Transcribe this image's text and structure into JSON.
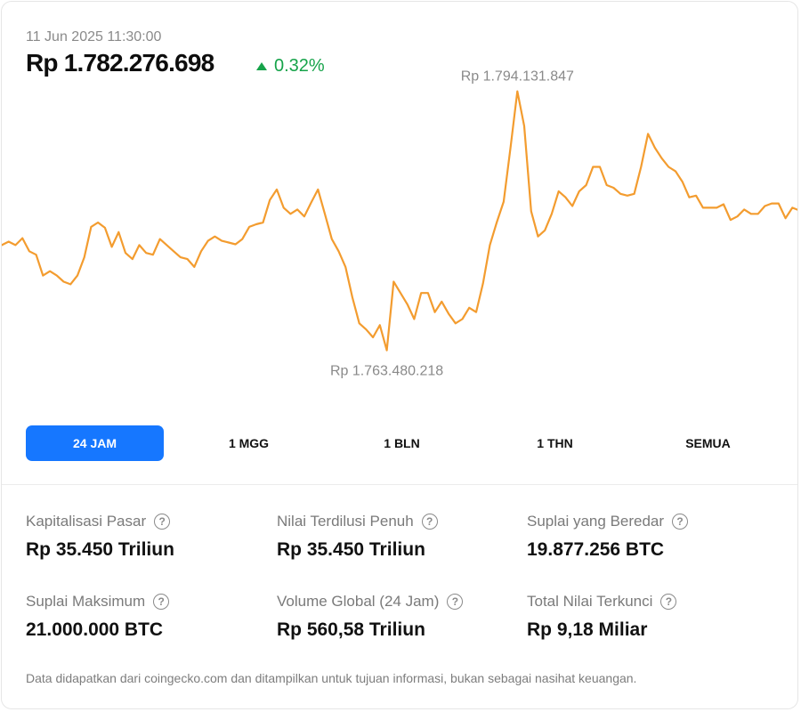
{
  "header": {
    "timestamp": "11 Jun 2025 11:30:00",
    "price": "Rp 1.782.276.698",
    "change": "0.32%",
    "change_color": "#16a34a"
  },
  "chart_data": {
    "type": "line",
    "color": "#f39c2f",
    "y_range": [
      1757000000,
      1800000000
    ],
    "high_label": "Rp 1.794.131.847",
    "low_label": "Rp 1.763.480.218",
    "high": 1794131847,
    "low": 1763480218,
    "values": [
      1776100000,
      1776500000,
      1776100000,
      1776900000,
      1775400000,
      1775000000,
      1772600000,
      1773100000,
      1772600000,
      1771900000,
      1771600000,
      1772600000,
      1774700000,
      1778200000,
      1778700000,
      1778100000,
      1775900000,
      1777600000,
      1775200000,
      1774500000,
      1776100000,
      1775200000,
      1775000000,
      1776800000,
      1776100000,
      1775400000,
      1774700000,
      1774500000,
      1773600000,
      1775400000,
      1776600000,
      1777100000,
      1776600000,
      1776400000,
      1776200000,
      1776800000,
      1778200000,
      1778500000,
      1778700000,
      1781300000,
      1782500000,
      1780400000,
      1779700000,
      1780200000,
      1779400000,
      1781000000,
      1782500000,
      1779700000,
      1776800000,
      1775400000,
      1773600000,
      1770100000,
      1767100000,
      1766400000,
      1765500000,
      1766900000,
      1764000000,
      1771900000,
      1770600000,
      1769300000,
      1767600000,
      1770600000,
      1770600000,
      1768400000,
      1769600000,
      1768200000,
      1767100000,
      1767600000,
      1768900000,
      1768400000,
      1771700000,
      1776100000,
      1778700000,
      1781100000,
      1787300000,
      1793800000,
      1789800000,
      1780000000,
      1777100000,
      1777800000,
      1779700000,
      1782300000,
      1781600000,
      1780600000,
      1782300000,
      1783000000,
      1785100000,
      1785100000,
      1783000000,
      1782700000,
      1782000000,
      1781800000,
      1782000000,
      1785100000,
      1788900000,
      1787300000,
      1786100000,
      1785100000,
      1784600000,
      1783400000,
      1781600000,
      1781800000,
      1780400000,
      1780400000,
      1780400000,
      1780800000,
      1779000000,
      1779400000,
      1780200000,
      1779700000,
      1779700000,
      1780600000,
      1780900000,
      1780900000,
      1779200000,
      1780400000,
      1780100000
    ]
  },
  "ranges": [
    {
      "label": "24 JAM",
      "active": true
    },
    {
      "label": "1 MGG",
      "active": false
    },
    {
      "label": "1 BLN",
      "active": false
    },
    {
      "label": "1 THN",
      "active": false
    },
    {
      "label": "SEMUA",
      "active": false
    }
  ],
  "stats": [
    {
      "label": "Kapitalisasi Pasar",
      "value": "Rp 35.450 Triliun"
    },
    {
      "label": "Nilai Terdilusi Penuh",
      "value": "Rp 35.450 Triliun"
    },
    {
      "label": "Suplai yang Beredar",
      "value": "19.877.256 BTC"
    },
    {
      "label": "Suplai Maksimum",
      "value": "21.000.000 BTC"
    },
    {
      "label": "Volume Global (24 Jam)",
      "value": "Rp 560,58 Triliun"
    },
    {
      "label": "Total Nilai Terkunci",
      "value": "Rp 9,18 Miliar"
    }
  ],
  "help_icon": "?",
  "disclaimer": "Data didapatkan dari coingecko.com dan ditampilkan untuk tujuan informasi, bukan sebagai nasihat keuangan."
}
